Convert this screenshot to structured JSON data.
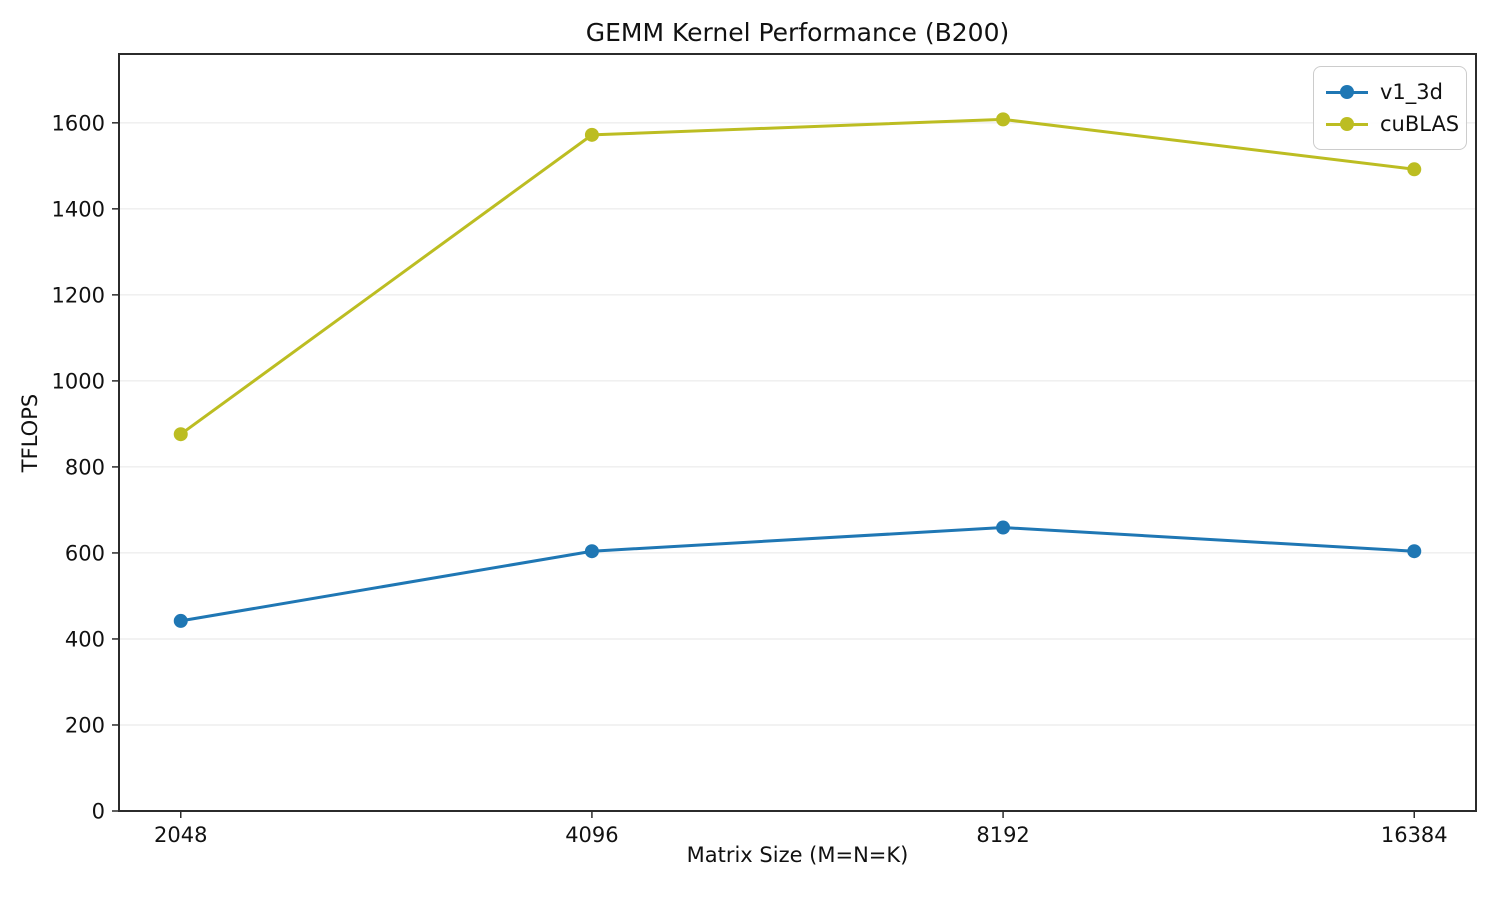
{
  "chart_data": {
    "type": "line",
    "title": "GEMM Kernel Performance (B200)",
    "xlabel": "Matrix Size (M=N=K)",
    "ylabel": "TFLOPS",
    "categories": [
      "2048",
      "4096",
      "8192",
      "16384"
    ],
    "series": [
      {
        "name": "v1_3d",
        "color": "#1f77b4",
        "values": [
          442,
          604,
          659,
          604
        ]
      },
      {
        "name": "cuBLAS",
        "color": "#bcbd22",
        "values": [
          876,
          1572,
          1608,
          1492
        ]
      }
    ],
    "yticks": [
      0,
      200,
      400,
      600,
      800,
      1000,
      1200,
      1400,
      1600
    ],
    "ylim": [
      0,
      1760
    ],
    "x_scale": "log2-even-spacing",
    "grid": "horizontal",
    "grid_color": "#e6e6e6",
    "frame_color": "#2b2b2b",
    "legend_position": "top-right",
    "marker": "circle",
    "background": "#ffffff"
  }
}
